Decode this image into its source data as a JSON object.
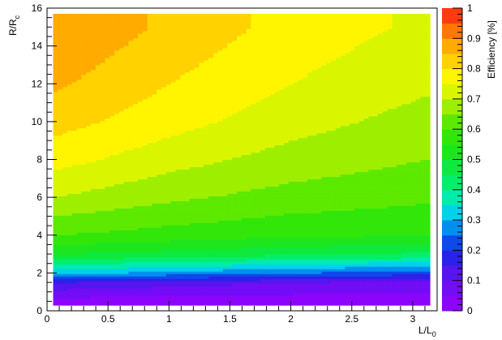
{
  "chart_data": {
    "type": "heatmap",
    "xlabel": "L/L",
    "xlabel_sub": "0",
    "ylabel": "R/R",
    "ylabel_sub": "c",
    "zlabel": "Efficiency [%]",
    "xlim": [
      0,
      3.2
    ],
    "ylim": [
      0,
      16
    ],
    "zlim": [
      0,
      1
    ],
    "data_extent": {
      "x": [
        0.05,
        3.14
      ],
      "y": [
        0.3,
        15.7
      ]
    },
    "x_ticks": [
      "0",
      "0.5",
      "1",
      "1.5",
      "2",
      "2.5",
      "3"
    ],
    "y_ticks": [
      "0",
      "2",
      "4",
      "6",
      "8",
      "10",
      "12",
      "14",
      "16"
    ],
    "z_ticks": [
      "0",
      "0.1",
      "0.2",
      "0.3",
      "0.4",
      "0.5",
      "0.6",
      "0.7",
      "0.8",
      "0.9",
      "1"
    ],
    "contour_levels": 20,
    "colormap": "rainbow (purple → blue → cyan → green → yellow → orange → red)",
    "description": "Filled contour of efficiency vs L/L0 and R/Rc; efficiency rises with R/Rc and falls with L/L0",
    "sample_grid": {
      "x": [
        0.05,
        1.0,
        2.0,
        3.1
      ],
      "y": [
        0.5,
        1.5,
        2.0,
        3.0,
        4.0,
        6.0,
        8.0,
        10.0,
        12.0,
        15.0
      ],
      "z_rows": [
        [
          0.02,
          0.02,
          0.02,
          0.02
        ],
        [
          0.15,
          0.12,
          0.1,
          0.08
        ],
        [
          0.32,
          0.28,
          0.25,
          0.22
        ],
        [
          0.5,
          0.48,
          0.46,
          0.44
        ],
        [
          0.6,
          0.58,
          0.56,
          0.55
        ],
        [
          0.7,
          0.66,
          0.63,
          0.61
        ],
        [
          0.77,
          0.72,
          0.68,
          0.65
        ],
        [
          0.82,
          0.77,
          0.72,
          0.68
        ],
        [
          0.86,
          0.8,
          0.75,
          0.71
        ],
        [
          0.9,
          0.84,
          0.78,
          0.74
        ]
      ]
    }
  }
}
